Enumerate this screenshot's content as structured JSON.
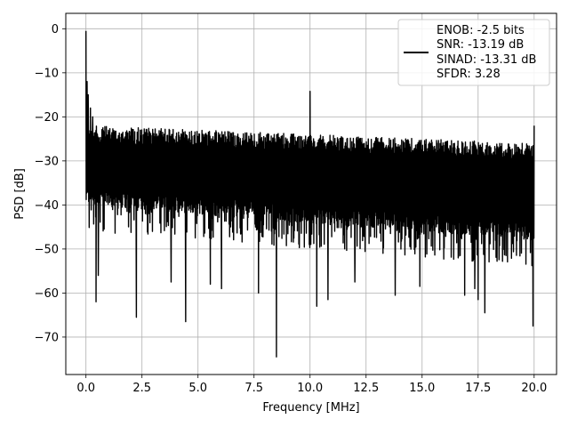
{
  "chart_data": {
    "type": "line",
    "xlabel": "Frequency [MHz]",
    "ylabel": "PSD [dB]",
    "xlim": [
      -0.9,
      21.0
    ],
    "ylim": [
      -78.5,
      3.5
    ],
    "xticks": [
      0.0,
      2.5,
      5.0,
      7.5,
      10.0,
      12.5,
      15.0,
      17.5,
      20.0
    ],
    "xtick_labels": [
      "0.0",
      "2.5",
      "5.0",
      "7.5",
      "10.0",
      "12.5",
      "15.0",
      "17.5",
      "20.0"
    ],
    "yticks": [
      0,
      -10,
      -20,
      -30,
      -40,
      -50,
      -60,
      -70
    ],
    "ytick_labels": [
      "0",
      "−10",
      "−20",
      "−30",
      "−40",
      "−50",
      "−60",
      "−70"
    ],
    "grid": true,
    "legend_position": "top-right",
    "series": [
      {
        "legend_lines": [
          "ENOB: -2.5 bits",
          "SNR: -13.19 dB",
          "SINAD: -13.31 dB",
          "SFDR: 3.28"
        ],
        "color": "#000000",
        "noise_floor": {
          "x_range": [
            0.0,
            20.0
          ],
          "upper_db": [
            -22,
            -26
          ],
          "lower_db": [
            -40,
            -48
          ]
        },
        "features": [
          {
            "x": 0.0,
            "y": -0.5
          },
          {
            "x": 0.05,
            "y": -12
          },
          {
            "x": 0.1,
            "y": -15
          },
          {
            "x": 0.2,
            "y": -18
          },
          {
            "x": 0.3,
            "y": -20
          },
          {
            "x": 0.45,
            "y": -62
          },
          {
            "x": 0.55,
            "y": -56
          },
          {
            "x": 2.25,
            "y": -65.5
          },
          {
            "x": 3.8,
            "y": -57.5
          },
          {
            "x": 4.45,
            "y": -66.5
          },
          {
            "x": 5.55,
            "y": -58
          },
          {
            "x": 6.05,
            "y": -59
          },
          {
            "x": 7.7,
            "y": -60
          },
          {
            "x": 8.5,
            "y": -74.5
          },
          {
            "x": 10.0,
            "y": -14.2
          },
          {
            "x": 10.3,
            "y": -63
          },
          {
            "x": 10.8,
            "y": -61.5
          },
          {
            "x": 12.0,
            "y": -57.5
          },
          {
            "x": 13.8,
            "y": -60.5
          },
          {
            "x": 14.9,
            "y": -58.5
          },
          {
            "x": 16.9,
            "y": -60.5
          },
          {
            "x": 17.35,
            "y": -59
          },
          {
            "x": 17.5,
            "y": -61.5
          },
          {
            "x": 17.8,
            "y": -64.5
          },
          {
            "x": 19.95,
            "y": -67.5
          },
          {
            "x": 20.0,
            "y": -22
          }
        ]
      }
    ]
  }
}
